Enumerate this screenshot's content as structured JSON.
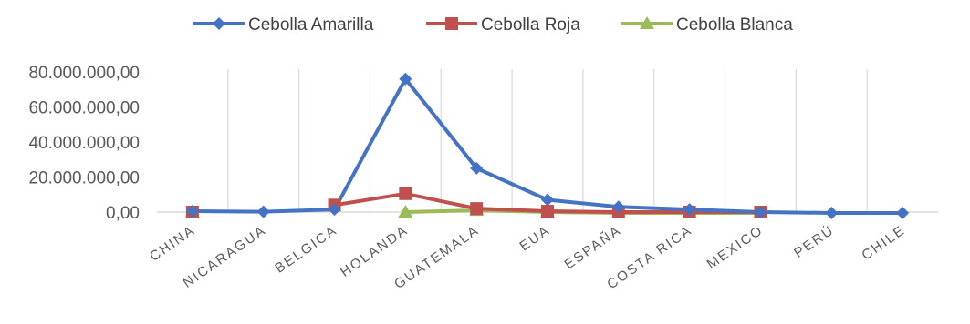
{
  "chart_data": {
    "type": "line",
    "categories": [
      "CHINA",
      "NICARAGUA",
      "BELGICA",
      "HOLANDA",
      "GUATEMALA",
      "EUA",
      "ESPAÑA",
      "COSTA RICA",
      "MEXICO",
      "PERÚ",
      "CHILE"
    ],
    "y_tick_labels": [
      "0,00",
      "20.000.000,00",
      "40.000.000,00",
      "60.000.000,00",
      "80.000.000,00"
    ],
    "y_ticks": [
      0,
      20000000,
      40000000,
      60000000,
      80000000
    ],
    "ylim": [
      0,
      80000000
    ],
    "grid": "vertical",
    "legend_position": "top",
    "series": [
      {
        "name": "Cebolla Amarilla",
        "color": "#4472C4",
        "marker": "diamond",
        "values": [
          500000,
          200000,
          1500000,
          76000000,
          25000000,
          7000000,
          3000000,
          1500000,
          0,
          -500000,
          -500000
        ]
      },
      {
        "name": "Cebolla Roja",
        "color": "#C0504D",
        "marker": "square",
        "values": [
          0,
          null,
          4000000,
          10500000,
          2000000,
          500000,
          0,
          0,
          0,
          null,
          null
        ]
      },
      {
        "name": "Cebolla Blanca",
        "color": "#9BBB59",
        "marker": "triangle",
        "values": [
          0,
          null,
          null,
          0,
          1000000,
          0,
          -500000,
          -500000,
          -500000,
          null,
          null
        ]
      }
    ]
  }
}
